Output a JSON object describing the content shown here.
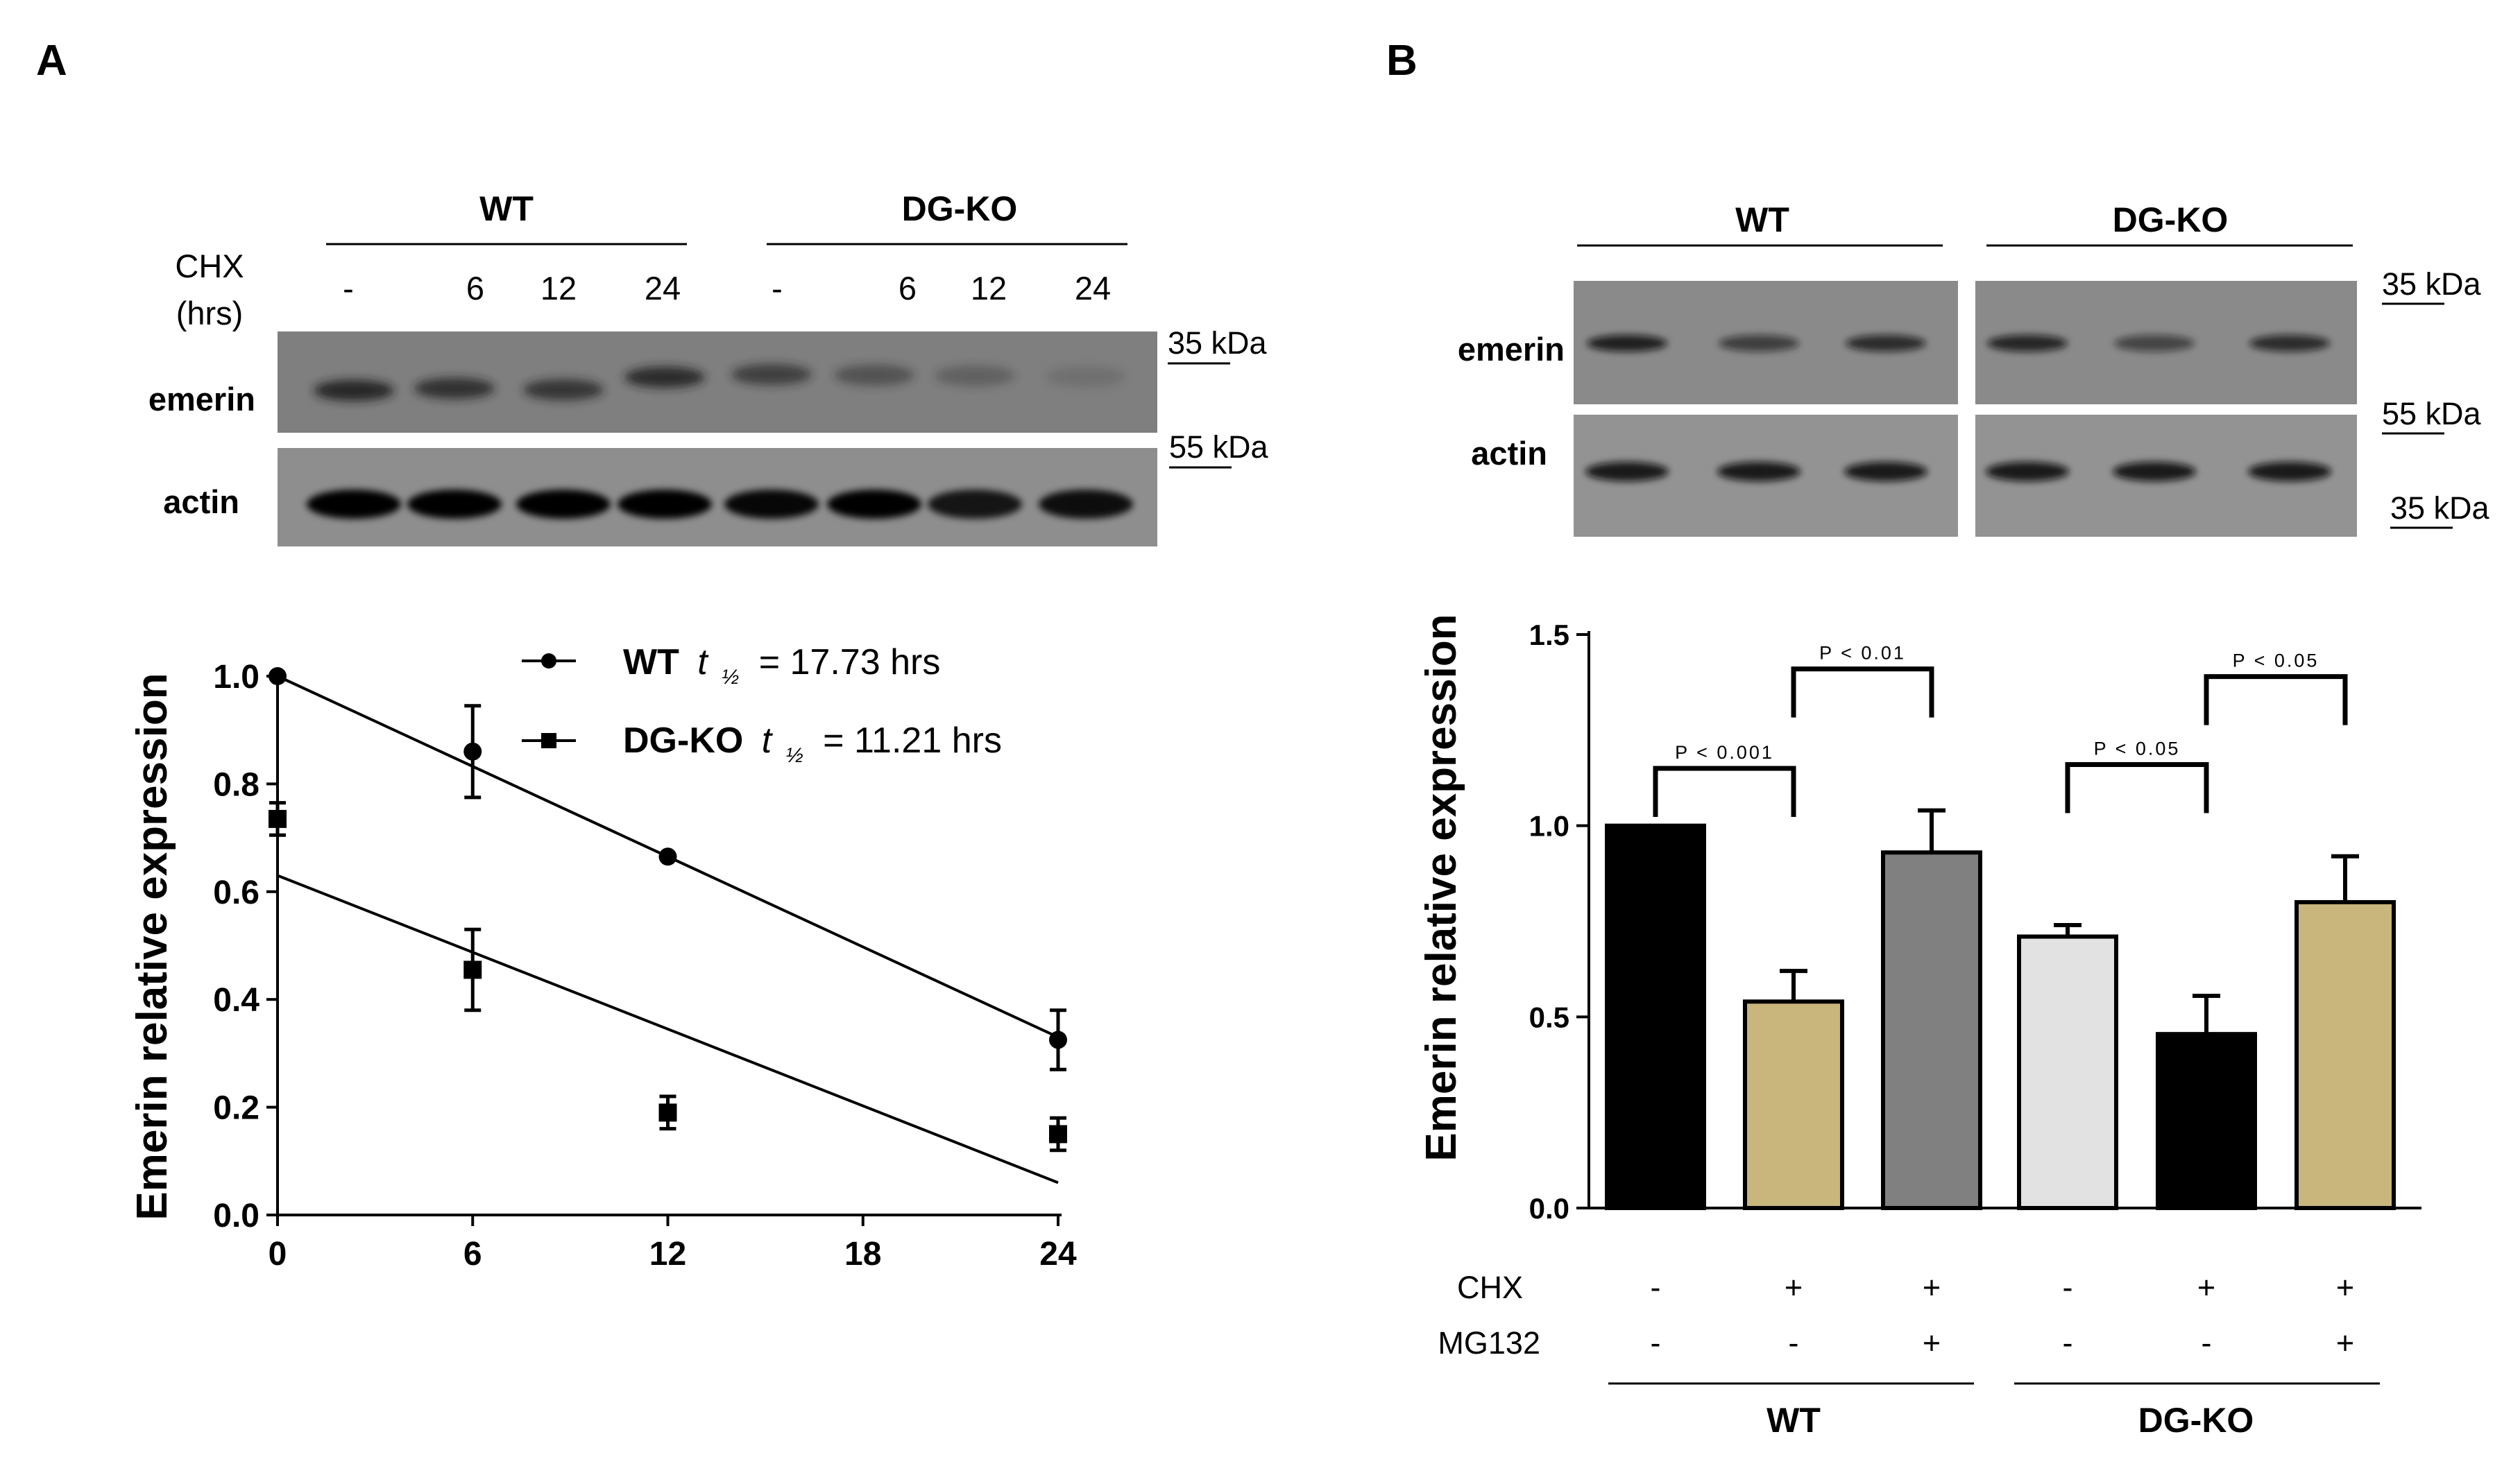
{
  "panels": {
    "a": "A",
    "b": "B"
  },
  "colors": {
    "black": "#000000",
    "tan": "#c8b67c",
    "grey": "#808080",
    "light": "#e2e2e2"
  },
  "blot_a": {
    "group_labels": [
      "WT",
      "DG-KO"
    ],
    "treatment_label_line1": "CHX",
    "treatment_label_line2": "(hrs)",
    "lanes": [
      "-",
      "6",
      "12",
      "24",
      "-",
      "6",
      "12",
      "24"
    ],
    "row_labels": [
      "emerin",
      "actin"
    ],
    "markers": [
      "35 kDa",
      "55 kDa"
    ]
  },
  "blot_b": {
    "group_labels": [
      "WT",
      "DG-KO"
    ],
    "row_labels": [
      "emerin",
      "actin"
    ],
    "markers": [
      "35 kDa",
      "55 kDa",
      "35 kDa"
    ]
  },
  "chart_data": [
    {
      "type": "scatter",
      "title": "",
      "xlabel": "",
      "ylabel": "Emerin relative  expression",
      "xlim": [
        0,
        24
      ],
      "ylim": [
        0,
        1.0
      ],
      "xticks": [
        "0",
        "6",
        "12",
        "18",
        "24"
      ],
      "yticks": [
        "0.0",
        "0.2",
        "0.4",
        "0.6",
        "0.8",
        "1.0"
      ],
      "legend_position": "top",
      "series": [
        {
          "name": "WT",
          "label_half": "t",
          "label_sub": "½",
          "label_value": "= 17.73 hrs",
          "marker": "circle",
          "x": [
            0,
            6,
            12,
            24
          ],
          "y": [
            1.0,
            0.86,
            0.665,
            0.325
          ],
          "err": [
            0.0,
            0.085,
            0.0,
            0.055
          ],
          "fit": [
            [
              0,
              1.0
            ],
            [
              24,
              0.33
            ]
          ]
        },
        {
          "name": "DG-KO",
          "label_half": "t",
          "label_sub": "½",
          "label_value": "= 11.21 hrs",
          "marker": "square",
          "x": [
            0,
            6,
            12,
            24
          ],
          "y": [
            0.735,
            0.455,
            0.19,
            0.15
          ],
          "err": [
            0.03,
            0.075,
            0.03,
            0.03
          ],
          "fit": [
            [
              0,
              0.63
            ],
            [
              24,
              0.06
            ]
          ]
        }
      ]
    },
    {
      "type": "bar",
      "title": "",
      "xlabel": "",
      "ylabel": "Emerin relative  expression",
      "ylim": [
        0,
        1.5
      ],
      "yticks": [
        "0.0",
        "0.5",
        "1.0",
        "1.5"
      ],
      "categories": [
        "WT CHX- MG132-",
        "WT CHX+ MG132-",
        "WT CHX+ MG132+",
        "DG-KO CHX- MG132-",
        "DG-KO CHX+ MG132-",
        "DG-KO CHX+ MG132+"
      ],
      "values": [
        1.0,
        0.54,
        0.93,
        0.71,
        0.455,
        0.8
      ],
      "errors": [
        0.0,
        0.08,
        0.11,
        0.03,
        0.1,
        0.12
      ],
      "bar_colors": [
        "#000000",
        "#c8b67c",
        "#808080",
        "#e2e2e2",
        "#000000",
        "#c8b67c"
      ],
      "conditions": {
        "row_labels": [
          "CHX",
          "MG132"
        ],
        "chx": [
          "-",
          "+",
          "+",
          "-",
          "+",
          "+"
        ],
        "mg132": [
          "-",
          "-",
          "+",
          "-",
          "-",
          "+"
        ]
      },
      "groups": [
        "WT",
        "DG-KO"
      ],
      "comparisons": [
        {
          "from": 0,
          "to": 1,
          "label": "P < 0.001",
          "y": 1.15
        },
        {
          "from": 1,
          "to": 2,
          "label": "P < 0.01",
          "y": 1.41
        },
        {
          "from": 3,
          "to": 4,
          "label": "P < 0.05",
          "y": 1.16
        },
        {
          "from": 4,
          "to": 5,
          "label": "P < 0.05",
          "y": 1.39
        }
      ]
    }
  ]
}
